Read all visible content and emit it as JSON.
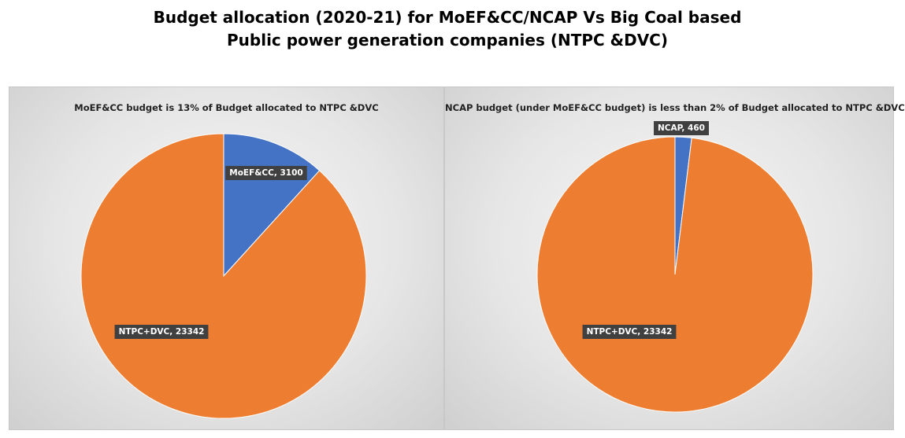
{
  "title_line1": "Budget allocation (2020-21)  for MoEF&CC/NCAP Vs Big Coal based",
  "title_line2": "Public power generation companies (NTPC &DVC)",
  "colors": {
    "blue": "#4472C4",
    "orange": "#ED7D31"
  },
  "chart_data": [
    {
      "type": "pie",
      "title": "MoEF&CC budget is 13% of Budget allocated to NTPC &DVC",
      "labels": [
        "MoEF&CC",
        "NTPC+DVC"
      ],
      "values": [
        3100,
        23342
      ],
      "data_labels": [
        "MoEF&CC, 3100",
        "NTPC+DVC, 23342"
      ],
      "colors": [
        "#4472C4",
        "#ED7D31"
      ]
    },
    {
      "type": "pie",
      "title": "NCAP budget (under MoEF&CC budget) is less than 2% of Budget allocated to NTPC &DVC",
      "labels": [
        "NCAP",
        "NTPC+DVC"
      ],
      "values": [
        460,
        23342
      ],
      "data_labels": [
        "NCAP, 460",
        "NTPC+DVC, 23342"
      ],
      "colors": [
        "#4472C4",
        "#ED7D31"
      ]
    }
  ]
}
